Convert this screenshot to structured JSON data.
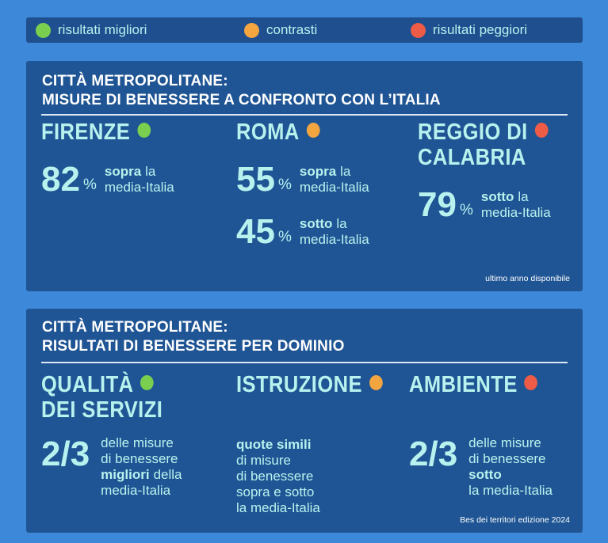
{
  "legend": [
    {
      "label": "risultati migliori",
      "color": "#7bcf4f"
    },
    {
      "label": "contrasti",
      "color": "#f3a640"
    },
    {
      "label": "risultati peggiori",
      "color": "#ee5b47"
    }
  ],
  "panels": [
    {
      "title": [
        "CITTÀ METROPOLITANE:",
        "MISURE DI BENESSERE A CONFRONTO CON L’ITALIA"
      ],
      "columns": [
        {
          "name": [
            "FIRENZE"
          ],
          "color": "#7bcf4f",
          "stats": [
            {
              "big": "82",
              "unit": "%",
              "lines": [
                [
                  {
                    "t": "sopra",
                    "b": true
                  },
                  {
                    "t": "la"
                  }
                ],
                [
                  {
                    "t": "media-Italia"
                  }
                ]
              ]
            }
          ]
        },
        {
          "name": [
            "ROMA"
          ],
          "color": "#f3a640",
          "stats": [
            {
              "big": "55",
              "unit": "%",
              "lines": [
                [
                  {
                    "t": "sopra",
                    "b": true
                  },
                  {
                    "t": "la"
                  }
                ],
                [
                  {
                    "t": "media-Italia"
                  }
                ]
              ]
            },
            {
              "big": "45",
              "unit": "%",
              "lines": [
                [
                  {
                    "t": "sotto",
                    "b": true
                  },
                  {
                    "t": "la"
                  }
                ],
                [
                  {
                    "t": "media-Italia"
                  }
                ]
              ]
            }
          ]
        },
        {
          "name": [
            "REGGIO DI",
            "CALABRIA"
          ],
          "color": "#ee5b47",
          "stats": [
            {
              "big": "79",
              "unit": "%",
              "lines": [
                [
                  {
                    "t": "sotto",
                    "b": true
                  },
                  {
                    "t": "la"
                  }
                ],
                [
                  {
                    "t": "media-Italia"
                  }
                ]
              ]
            }
          ]
        }
      ],
      "note": "ultimo anno disponibile"
    },
    {
      "title": [
        "CITTÀ METROPOLITANE:",
        "RISULTATI DI BENESSERE PER DOMINIO"
      ],
      "columns": [
        {
          "name": [
            "QUALITÀ",
            "DEI SERVIZI"
          ],
          "color": "#7bcf4f",
          "stats": [
            {
              "big": "2/3",
              "lines": [
                [
                  {
                    "t": "delle misure"
                  }
                ],
                [
                  {
                    "t": "di benessere"
                  }
                ],
                [
                  {
                    "t": "migliori",
                    "b": true
                  },
                  {
                    "t": "della"
                  }
                ],
                [
                  {
                    "t": "media-Italia"
                  }
                ]
              ]
            }
          ]
        },
        {
          "name": [
            "ISTRUZIONE"
          ],
          "color": "#f3a640",
          "stats": [
            {
              "lines": [
                [
                  {
                    "t": "quote simili",
                    "b": true
                  }
                ],
                [
                  {
                    "t": "di misure"
                  }
                ],
                [
                  {
                    "t": "di benessere"
                  }
                ],
                [
                  {
                    "t": "sopra e sotto"
                  }
                ],
                [
                  {
                    "t": "la media-Italia"
                  }
                ]
              ]
            }
          ]
        },
        {
          "name": [
            "AMBIENTE"
          ],
          "color": "#ee5b47",
          "stats": [
            {
              "big": "2/3",
              "lines": [
                [
                  {
                    "t": "delle misure"
                  }
                ],
                [
                  {
                    "t": "di benessere"
                  }
                ],
                [
                  {
                    "t": "sotto",
                    "b": true
                  }
                ],
                [
                  {
                    "t": "la media-Italia"
                  }
                ]
              ]
            }
          ]
        }
      ],
      "note": "Bes dei territori edizione 2024"
    }
  ]
}
